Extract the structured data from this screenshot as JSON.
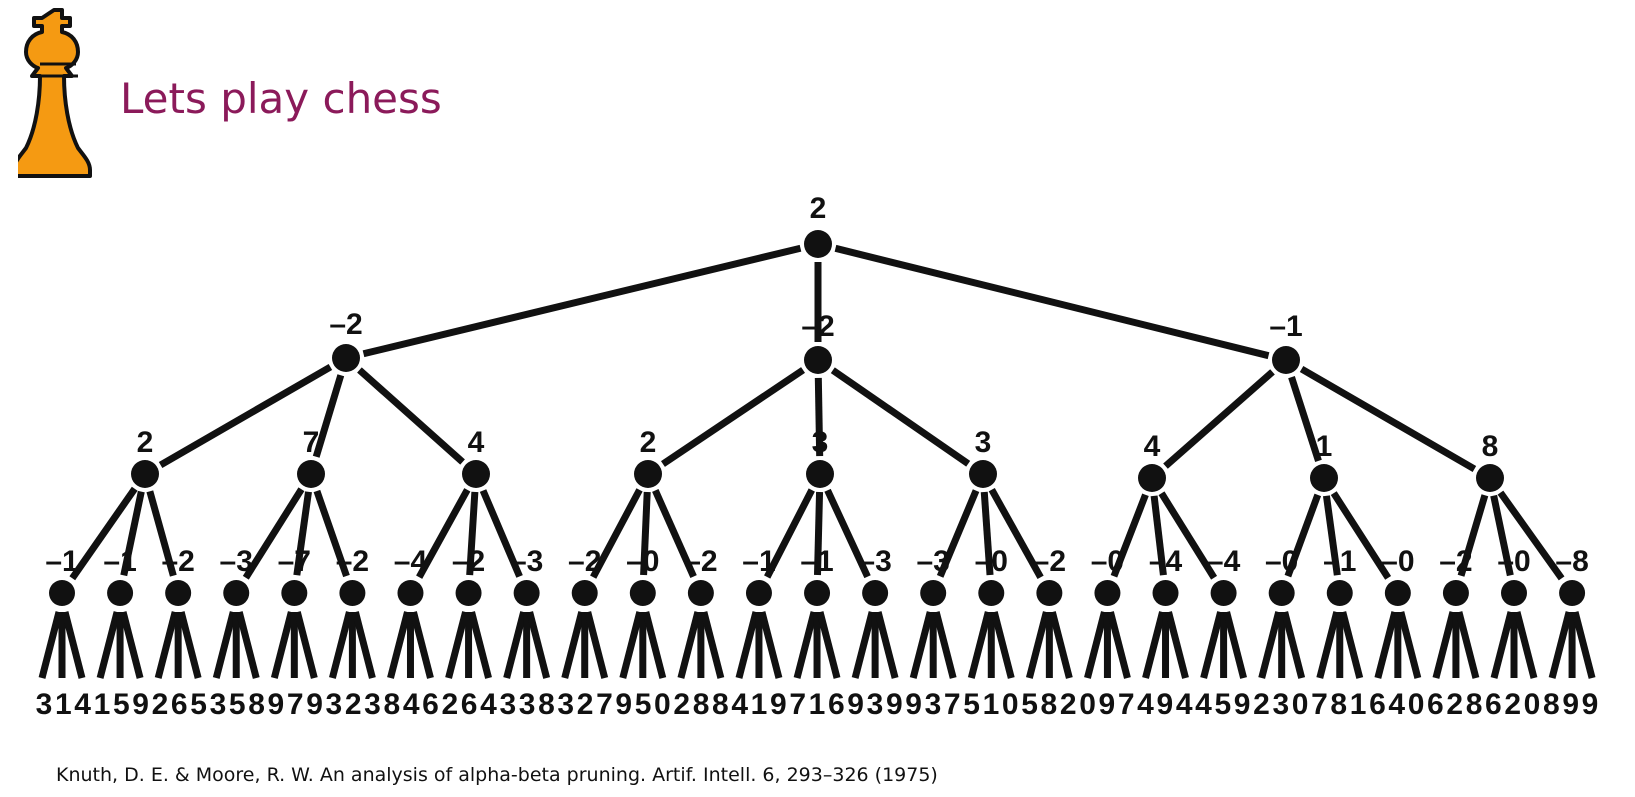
{
  "header": {
    "logo_icon": "chess-king-icon",
    "title": "Lets play chess",
    "title_color": "#8b1a5a",
    "logo_color": "#f59a12"
  },
  "tree": {
    "root": "2",
    "level1": [
      "–2",
      "–2",
      "–1"
    ],
    "level2": [
      "2",
      "7",
      "4",
      "2",
      "3",
      "3",
      "4",
      "1",
      "8"
    ],
    "level3": [
      "–1",
      "–1",
      "–2",
      "–3",
      "–7",
      "–2",
      "–4",
      "–2",
      "–3",
      "–2",
      "–0",
      "–2",
      "–1",
      "–1",
      "–3",
      "–3",
      "–0",
      "–2",
      "–0",
      "–4",
      "–4",
      "–0",
      "–1",
      "–0",
      "–2",
      "–0",
      "–8"
    ],
    "leaves": "314159265358979323846264338327950288419716939937510582097494459230781640628620899"
  },
  "citation": "Knuth, D. E. & Moore, R. W. An analysis of alpha-beta pruning. Artif. Intell. 6, 293–326 (1975)"
}
